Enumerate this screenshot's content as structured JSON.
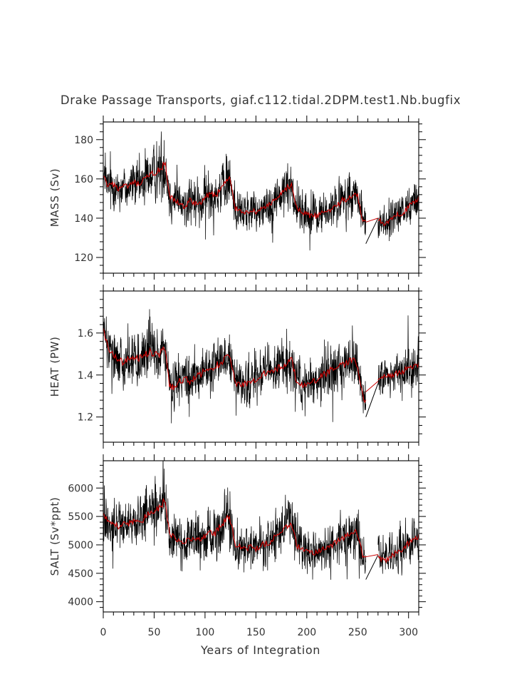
{
  "chart_data": {
    "type": "line",
    "title": "Drake Passage Transports, giaf.c112.tidal.2DPM.test1.Nb.bugfix",
    "xlabel": "Years of Integration",
    "xlim": [
      0,
      310
    ],
    "xticks": [
      0,
      50,
      100,
      150,
      200,
      250,
      300
    ],
    "colors": {
      "raw": "#000000",
      "smoothed": "#cc0000"
    },
    "panels": [
      {
        "id": "mass",
        "ylabel": "MASS (Sv)",
        "ylim": [
          112,
          189
        ],
        "yticks": [
          120,
          140,
          160,
          180
        ],
        "x": [
          0,
          5,
          10,
          15,
          20,
          25,
          30,
          35,
          40,
          45,
          50,
          55,
          60,
          61,
          65,
          70,
          75,
          80,
          85,
          90,
          95,
          100,
          105,
          110,
          115,
          120,
          123,
          124,
          130,
          135,
          140,
          145,
          150,
          155,
          160,
          165,
          170,
          175,
          180,
          185,
          186,
          190,
          195,
          200,
          205,
          210,
          215,
          220,
          225,
          230,
          235,
          240,
          245,
          248,
          250,
          255,
          258,
          270,
          275,
          280,
          285,
          290,
          295,
          300,
          305,
          310
        ],
        "smooth": [
          161,
          156,
          157,
          155,
          156,
          156,
          158,
          157,
          159,
          162,
          163,
          164,
          167,
          166,
          151,
          149,
          147,
          146,
          149,
          147,
          148,
          150,
          153,
          151,
          155,
          158,
          160,
          160,
          145,
          144,
          143,
          144,
          143,
          145,
          146,
          147,
          150,
          152,
          155,
          157,
          155,
          145,
          143,
          142,
          141,
          141,
          143,
          143,
          145,
          147,
          149,
          150,
          152,
          152,
          151,
          139,
          138,
          140,
          137,
          138,
          140,
          142,
          143,
          146,
          148,
          150
        ],
        "spread": [
          9,
          9,
          9,
          9,
          9,
          9,
          9,
          10,
          10,
          11,
          11,
          12,
          13,
          13,
          9,
          9,
          9,
          9,
          9,
          9,
          9,
          10,
          10,
          10,
          10,
          11,
          11,
          11,
          8,
          8,
          8,
          8,
          8,
          8,
          9,
          9,
          9,
          9,
          10,
          10,
          10,
          8,
          8,
          8,
          8,
          8,
          8,
          8,
          8,
          9,
          9,
          9,
          9,
          9,
          9,
          7,
          7,
          8,
          8,
          8,
          8,
          8,
          8,
          9,
          9,
          9
        ],
        "gap": {
          "x": [
            258,
            270
          ],
          "raw": [
            127,
            140
          ],
          "smooth": [
            138,
            140
          ]
        }
      },
      {
        "id": "heat",
        "ylabel": "HEAT (PW)",
        "ylim": [
          1.08,
          1.8
        ],
        "yticks": [
          1.2,
          1.4,
          1.6
        ],
        "x": [
          0,
          5,
          10,
          15,
          20,
          25,
          30,
          35,
          40,
          45,
          50,
          55,
          60,
          61,
          65,
          70,
          75,
          80,
          85,
          90,
          95,
          100,
          105,
          110,
          115,
          120,
          123,
          124,
          130,
          135,
          140,
          145,
          150,
          155,
          160,
          165,
          170,
          175,
          180,
          185,
          186,
          190,
          195,
          200,
          205,
          210,
          215,
          220,
          225,
          230,
          235,
          240,
          245,
          248,
          250,
          255,
          258,
          270,
          275,
          280,
          285,
          290,
          295,
          300,
          305,
          310
        ],
        "smooth": [
          1.62,
          1.52,
          1.5,
          1.47,
          1.46,
          1.48,
          1.47,
          1.48,
          1.49,
          1.51,
          1.5,
          1.5,
          1.52,
          1.52,
          1.35,
          1.34,
          1.37,
          1.38,
          1.37,
          1.39,
          1.4,
          1.42,
          1.43,
          1.44,
          1.46,
          1.48,
          1.5,
          1.5,
          1.36,
          1.35,
          1.36,
          1.37,
          1.38,
          1.4,
          1.41,
          1.42,
          1.43,
          1.44,
          1.45,
          1.47,
          1.46,
          1.36,
          1.35,
          1.36,
          1.37,
          1.38,
          1.4,
          1.41,
          1.43,
          1.44,
          1.45,
          1.46,
          1.47,
          1.47,
          1.42,
          1.3,
          1.27,
          1.37,
          1.39,
          1.4,
          1.4,
          1.41,
          1.42,
          1.43,
          1.44,
          1.45
        ],
        "spread": [
          0.09,
          0.09,
          0.09,
          0.09,
          0.09,
          0.09,
          0.1,
          0.1,
          0.1,
          0.1,
          0.1,
          0.1,
          0.1,
          0.1,
          0.09,
          0.09,
          0.09,
          0.09,
          0.09,
          0.09,
          0.09,
          0.09,
          0.1,
          0.1,
          0.1,
          0.1,
          0.1,
          0.1,
          0.08,
          0.08,
          0.08,
          0.08,
          0.09,
          0.09,
          0.09,
          0.09,
          0.09,
          0.09,
          0.1,
          0.1,
          0.1,
          0.08,
          0.08,
          0.08,
          0.08,
          0.09,
          0.09,
          0.09,
          0.09,
          0.09,
          0.09,
          0.1,
          0.1,
          0.1,
          0.09,
          0.08,
          0.08,
          0.08,
          0.08,
          0.08,
          0.08,
          0.08,
          0.08,
          0.09,
          0.09,
          0.09
        ],
        "gap": {
          "x": [
            258,
            270
          ],
          "raw": [
            1.2,
            1.36
          ],
          "smooth": [
            1.32,
            1.37
          ]
        }
      },
      {
        "id": "salt",
        "ylabel": "SALT (Sv*ppt)",
        "ylim": [
          3820,
          6480
        ],
        "yticks": [
          4000,
          4500,
          5000,
          5500,
          6000
        ],
        "x": [
          0,
          5,
          10,
          15,
          20,
          25,
          30,
          35,
          40,
          45,
          50,
          55,
          60,
          61,
          65,
          70,
          75,
          80,
          85,
          90,
          95,
          100,
          105,
          110,
          115,
          120,
          123,
          124,
          130,
          135,
          140,
          145,
          150,
          155,
          160,
          165,
          170,
          175,
          180,
          185,
          186,
          190,
          195,
          200,
          205,
          210,
          215,
          220,
          225,
          230,
          235,
          240,
          245,
          248,
          250,
          255,
          258,
          270,
          275,
          280,
          285,
          290,
          295,
          300,
          305,
          310
        ],
        "smooth": [
          5550,
          5380,
          5400,
          5330,
          5380,
          5380,
          5420,
          5400,
          5460,
          5560,
          5600,
          5650,
          5750,
          5720,
          5200,
          5130,
          5060,
          5030,
          5130,
          5060,
          5100,
          5160,
          5260,
          5200,
          5330,
          5440,
          5500,
          5500,
          4990,
          4960,
          4930,
          4960,
          4930,
          5000,
          5030,
          5060,
          5160,
          5230,
          5330,
          5400,
          5330,
          4990,
          4930,
          4890,
          4860,
          4860,
          4930,
          4930,
          5000,
          5060,
          5130,
          5160,
          5230,
          5230,
          5200,
          4790,
          4760,
          4820,
          4720,
          4760,
          4820,
          4890,
          4930,
          5030,
          5100,
          5160
        ],
        "spread": [
          310,
          310,
          310,
          310,
          310,
          310,
          310,
          340,
          340,
          380,
          380,
          410,
          450,
          450,
          310,
          310,
          310,
          310,
          310,
          310,
          310,
          340,
          340,
          340,
          340,
          380,
          380,
          380,
          280,
          280,
          280,
          280,
          280,
          280,
          310,
          310,
          310,
          310,
          340,
          340,
          340,
          280,
          280,
          280,
          280,
          280,
          280,
          280,
          280,
          310,
          310,
          310,
          310,
          310,
          310,
          240,
          240,
          280,
          280,
          280,
          280,
          280,
          280,
          310,
          310,
          310
        ],
        "gap": {
          "x": [
            258,
            270
          ],
          "raw": [
            4390,
            4820
          ],
          "smooth": [
            4790,
            4830
          ]
        }
      }
    ]
  }
}
